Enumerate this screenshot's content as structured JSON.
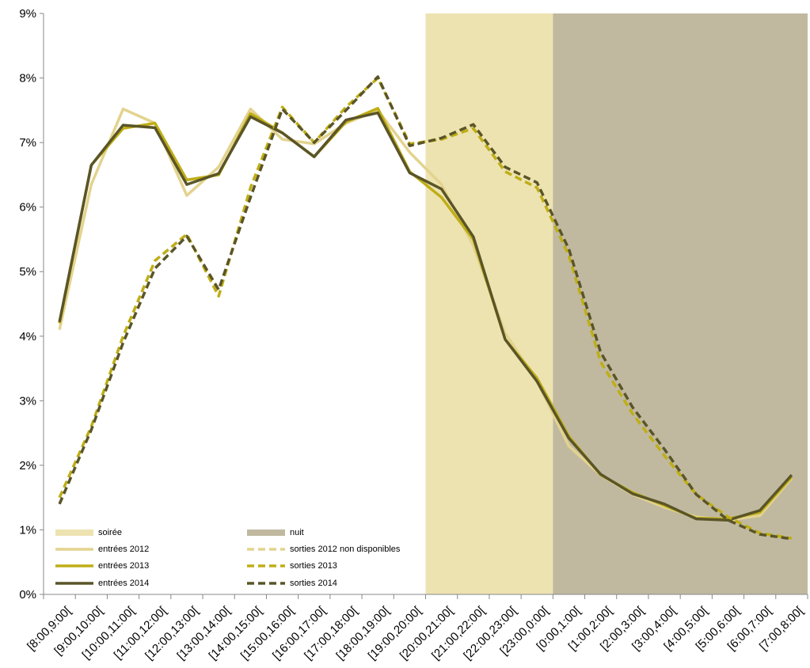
{
  "chart_data": {
    "type": "line",
    "categories": [
      "[8:00,9:00[",
      "[9:00,10:00[",
      "[10:00,11:00[",
      "[11:00,12:00[",
      "[12:00,13:00[",
      "[13:00,14:00[",
      "[14:00,15:00[",
      "[15:00,16:00[",
      "[16:00,17:00[",
      "[17:00,18:00[",
      "[18:00,19:00[",
      "[19:00,20:00[",
      "[20:00,21:00[",
      "[21:00,22:00[",
      "[22:00,23:00[",
      "[23:00,0:00[",
      "[0:00,1:00[",
      "[1:00,2:00[",
      "[2:00,3:00[",
      "[3:00,4:00[",
      "[4:00,5:00[",
      "[5:00,6:00[",
      "[6:00,7:00[",
      "[7:00,8:00["
    ],
    "bands": [
      {
        "name": "soirée",
        "color": "#ede3b1",
        "from": "[20:00,21:00[",
        "to": "[23:00,0:00["
      },
      {
        "name": "nuit",
        "color": "#c0b9a0",
        "from": "[0:00,1:00[",
        "to": "[7:00,8:00["
      }
    ],
    "series": [
      {
        "name": "entrées 2012",
        "color": "#e3d38e",
        "dashed": false,
        "values": [
          4.1,
          6.35,
          7.52,
          7.3,
          6.18,
          6.62,
          7.52,
          7.05,
          6.98,
          7.3,
          7.5,
          6.85,
          6.35,
          5.4,
          4.05,
          3.3,
          2.3,
          1.85,
          1.55,
          1.35,
          1.2,
          1.15,
          1.22,
          1.8
        ]
      },
      {
        "name": "entrées 2013",
        "color": "#bfae16",
        "dashed": false,
        "values": [
          4.2,
          6.65,
          7.22,
          7.3,
          6.42,
          6.5,
          7.45,
          7.15,
          6.78,
          7.32,
          7.53,
          6.55,
          6.15,
          5.5,
          3.95,
          3.35,
          2.45,
          1.85,
          1.58,
          1.38,
          1.18,
          1.17,
          1.27,
          1.82
        ]
      },
      {
        "name": "entrées 2014",
        "color": "#5a5527",
        "dashed": false,
        "values": [
          4.22,
          6.65,
          7.27,
          7.23,
          6.35,
          6.52,
          7.4,
          7.15,
          6.78,
          7.35,
          7.46,
          6.53,
          6.28,
          5.54,
          3.95,
          3.3,
          2.42,
          1.86,
          1.56,
          1.4,
          1.17,
          1.15,
          1.3,
          1.85
        ]
      },
      {
        "name": "sorties 2012 non disponibles",
        "color": "#e3d38e",
        "dashed": true,
        "values": [
          null,
          null,
          null,
          null,
          null,
          null,
          null,
          null,
          null,
          null,
          null,
          null,
          null,
          null,
          null,
          null,
          null,
          null,
          null,
          null,
          null,
          null,
          null,
          null
        ]
      },
      {
        "name": "sorties 2013",
        "color": "#bfae16",
        "dashed": true,
        "values": [
          1.5,
          2.6,
          4.0,
          5.17,
          5.58,
          4.62,
          6.3,
          7.55,
          7.0,
          7.55,
          8.0,
          6.98,
          7.05,
          7.22,
          6.55,
          6.3,
          5.25,
          3.6,
          2.8,
          2.15,
          1.55,
          1.2,
          0.95,
          0.87
        ]
      },
      {
        "name": "sorties 2014",
        "color": "#5a5527",
        "dashed": true,
        "values": [
          1.4,
          2.55,
          3.9,
          5.05,
          5.55,
          4.72,
          6.15,
          7.52,
          7.0,
          7.5,
          8.02,
          6.95,
          7.07,
          7.28,
          6.62,
          6.38,
          5.35,
          3.75,
          2.9,
          2.25,
          1.55,
          1.15,
          0.93,
          0.86
        ]
      }
    ],
    "ylim": [
      0,
      9
    ],
    "yticks": [
      {
        "value": 0,
        "label": "0%"
      },
      {
        "value": 1,
        "label": "1%"
      },
      {
        "value": 2,
        "label": "2%"
      },
      {
        "value": 3,
        "label": "3%"
      },
      {
        "value": 4,
        "label": "4%"
      },
      {
        "value": 5,
        "label": "5%"
      },
      {
        "value": 6,
        "label": "6%"
      },
      {
        "value": 7,
        "label": "7%"
      },
      {
        "value": 8,
        "label": "8%"
      },
      {
        "value": 9,
        "label": "9%"
      }
    ]
  }
}
